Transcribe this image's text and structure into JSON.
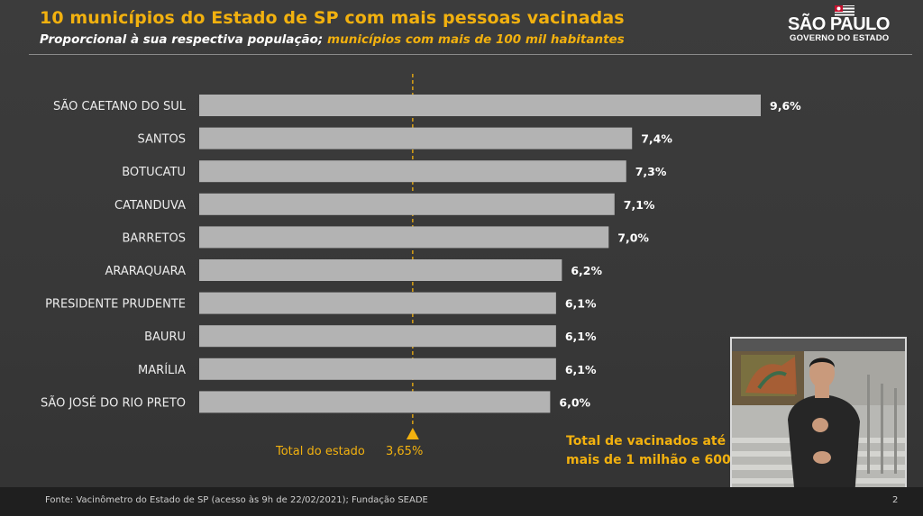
{
  "header": {
    "title": "10 municípios do Estado de SP com mais pessoas vacinadas",
    "subtitle_white": "Proporcional à sua respectiva população;",
    "subtitle_yellow": "municípios com mais de 100 mil habitantes"
  },
  "logo": {
    "line1": "SÃO PAULO",
    "line2": "GOVERNO DO ESTADO"
  },
  "colors": {
    "accent": "#f2b10f",
    "bar": "#b3b3b3",
    "background": "#3a3a3a"
  },
  "chart_data": {
    "type": "bar",
    "orientation": "horizontal",
    "categories": [
      "SÃO CAETANO DO SUL",
      "SANTOS",
      "BOTUCATU",
      "CATANDUVA",
      "BARRETOS",
      "ARARAQUARA",
      "PRESIDENTE PRUDENTE",
      "BAURU",
      "MARÍLIA",
      "SÃO JOSÉ DO RIO PRETO"
    ],
    "values": [
      9.6,
      7.4,
      7.3,
      7.1,
      7.0,
      6.2,
      6.1,
      6.1,
      6.1,
      6.0
    ],
    "value_labels": [
      "9,6%",
      "7,4%",
      "7,3%",
      "7,1%",
      "7,0%",
      "6,2%",
      "6,1%",
      "6,1%",
      "6,1%",
      "6,0%"
    ],
    "reference": {
      "label": "Total do estado",
      "value": 3.65,
      "value_label": "3,65%"
    },
    "xlim": [
      0,
      9.6
    ]
  },
  "callout": {
    "line1": "Total de vacinados até",
    "line2": "mais de 1 milhão e 600"
  },
  "footer": {
    "source": "Fonte: Vacinômetro do Estado de SP (acesso às 9h de 22/02/2021); Fundação SEADE",
    "page": "2"
  }
}
